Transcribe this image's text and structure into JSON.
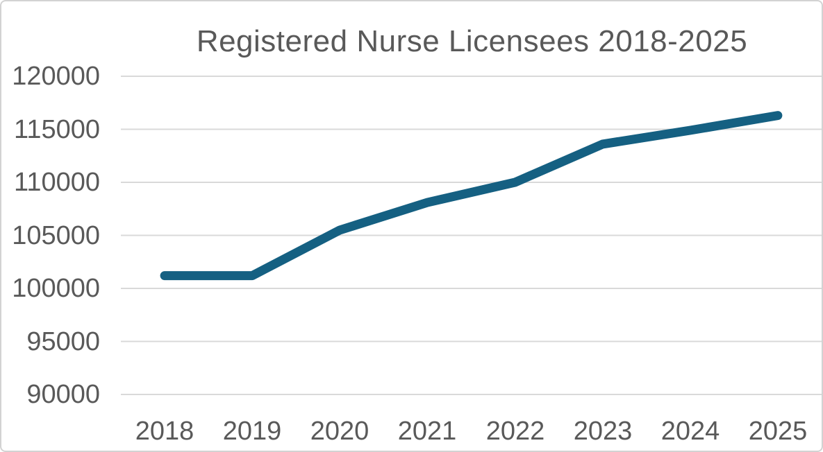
{
  "frame": {
    "background_color": "#FFFFFF",
    "border_color": "#D2D2D2"
  },
  "chart_data": {
    "type": "line",
    "title": "Registered Nurse Licensees 2018-2025",
    "categories": [
      "2018",
      "2019",
      "2020",
      "2021",
      "2022",
      "2023",
      "2024",
      "2025"
    ],
    "values": [
      101200,
      101200,
      105500,
      108100,
      110000,
      113600,
      114900,
      116300
    ],
    "xlabel": "",
    "ylabel": "",
    "ylim": [
      90000,
      120000
    ],
    "ytick_interval": 5000,
    "ytick_labels": [
      "120000",
      "115000",
      "110000",
      "105000",
      "100000",
      "95000",
      "90000"
    ],
    "grid": "horizontal",
    "legend": "none",
    "line_color": "#156082",
    "line_width": 13,
    "grid_color": "#D9D9D9",
    "text_color": "#595959"
  }
}
